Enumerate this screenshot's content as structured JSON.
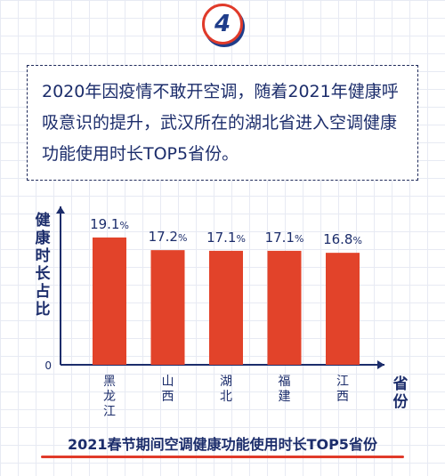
{
  "badge": {
    "number": "4"
  },
  "intro": {
    "text": "2020年因疫情不敢开空调，随着2021年健康呼吸意识的提升，武汉所在的湖北省进入空调健康功能使用时长TOP5省份。"
  },
  "chart_data": {
    "type": "bar",
    "title": "",
    "categories": [
      "黑龙江",
      "山西",
      "湖北",
      "福建",
      "江西"
    ],
    "values": [
      19.1,
      17.2,
      17.1,
      17.1,
      16.8
    ],
    "value_suffix": "%",
    "ylabel": "健康时长占比",
    "xlabel": "省份",
    "ylim": [
      0,
      22
    ],
    "y_ticks": [
      "0"
    ],
    "grid": false,
    "bar_color": "#e2432a",
    "text_color": "#1c2d6b"
  },
  "footnote": {
    "text": "2021春节期间空调健康功能使用时长TOP5省份"
  }
}
